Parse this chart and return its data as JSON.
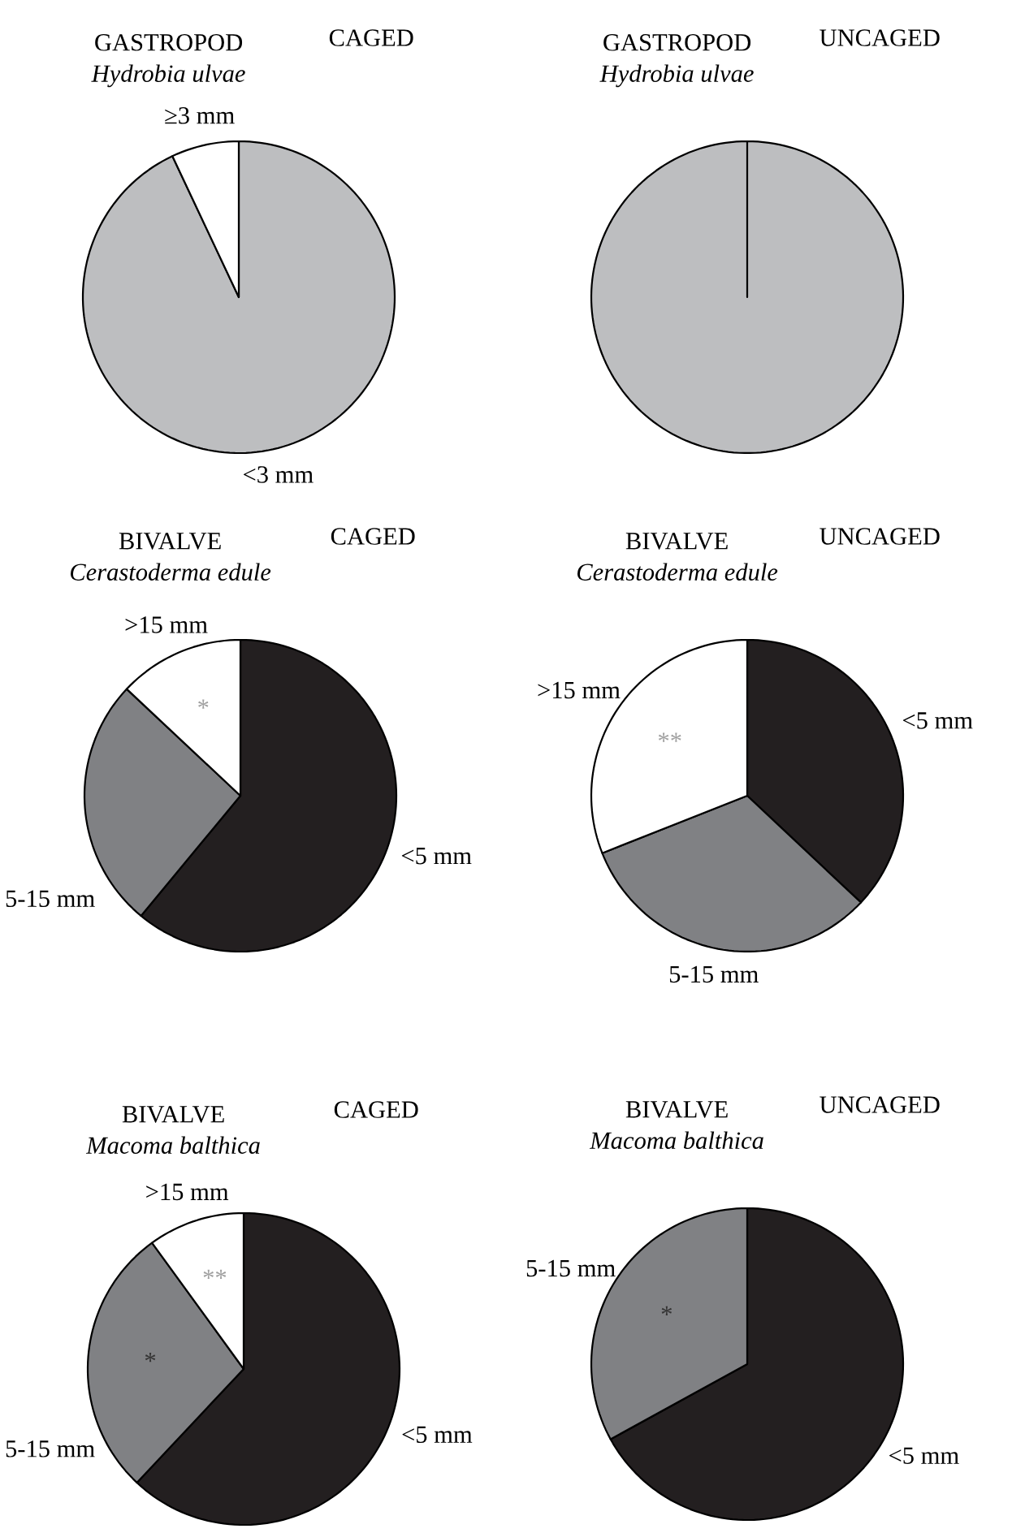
{
  "chart_data": [
    {
      "type": "pie",
      "title": "GASTROPOD",
      "subtitle": "Hydrobia ulvae",
      "annotations": [
        "CAGED"
      ],
      "categories": [
        "<3 mm",
        "≥3 mm"
      ],
      "values": [
        93,
        7
      ],
      "colors": [
        "#bdbec0",
        "#ffffff"
      ]
    },
    {
      "type": "pie",
      "title": "GASTROPOD",
      "subtitle": "Hydrobia ulvae",
      "annotations": [
        "UNCAGED"
      ],
      "categories": [
        null
      ],
      "values": [
        100
      ],
      "colors": [
        "#bdbec0"
      ]
    },
    {
      "type": "pie",
      "title": "BIVALVE",
      "subtitle": "Cerastoderma edule",
      "annotations": [
        "CAGED",
        {
          "text": "*",
          "x": ">15 mm"
        }
      ],
      "categories": [
        "<5 mm",
        "5-15 mm",
        ">15 mm"
      ],
      "values": [
        61,
        26,
        13
      ],
      "colors": [
        "#231f20",
        "#808184",
        "#ffffff"
      ]
    },
    {
      "type": "pie",
      "title": "BIVALVE",
      "subtitle": "Cerastoderma edule",
      "annotations": [
        "UNCAGED",
        {
          "text": "**",
          "x": ">15 mm"
        }
      ],
      "categories": [
        "<5 mm",
        "5-15 mm",
        ">15 mm"
      ],
      "values": [
        37,
        32,
        31
      ],
      "colors": [
        "#231f20",
        "#808184",
        "#ffffff"
      ]
    },
    {
      "type": "pie",
      "title": "BIVALVE",
      "subtitle": "Macoma balthica",
      "annotations": [
        "CAGED",
        {
          "text": "*",
          "x": "5-15 mm"
        },
        {
          "text": "**",
          "x": ">15 mm"
        }
      ],
      "categories": [
        "<5 mm",
        "5-15 mm",
        ">15 mm"
      ],
      "values": [
        62,
        28,
        10
      ],
      "colors": [
        "#231f20",
        "#808184",
        "#ffffff"
      ]
    },
    {
      "type": "pie",
      "title": "BIVALVE",
      "subtitle": "Macoma balthica",
      "annotations": [
        "UNCAGED",
        {
          "text": "*",
          "x": "5-15 mm"
        }
      ],
      "categories": [
        "<5 mm",
        "5-15 mm"
      ],
      "values": [
        67,
        33
      ],
      "colors": [
        "#231f20",
        "#808184"
      ]
    }
  ]
}
